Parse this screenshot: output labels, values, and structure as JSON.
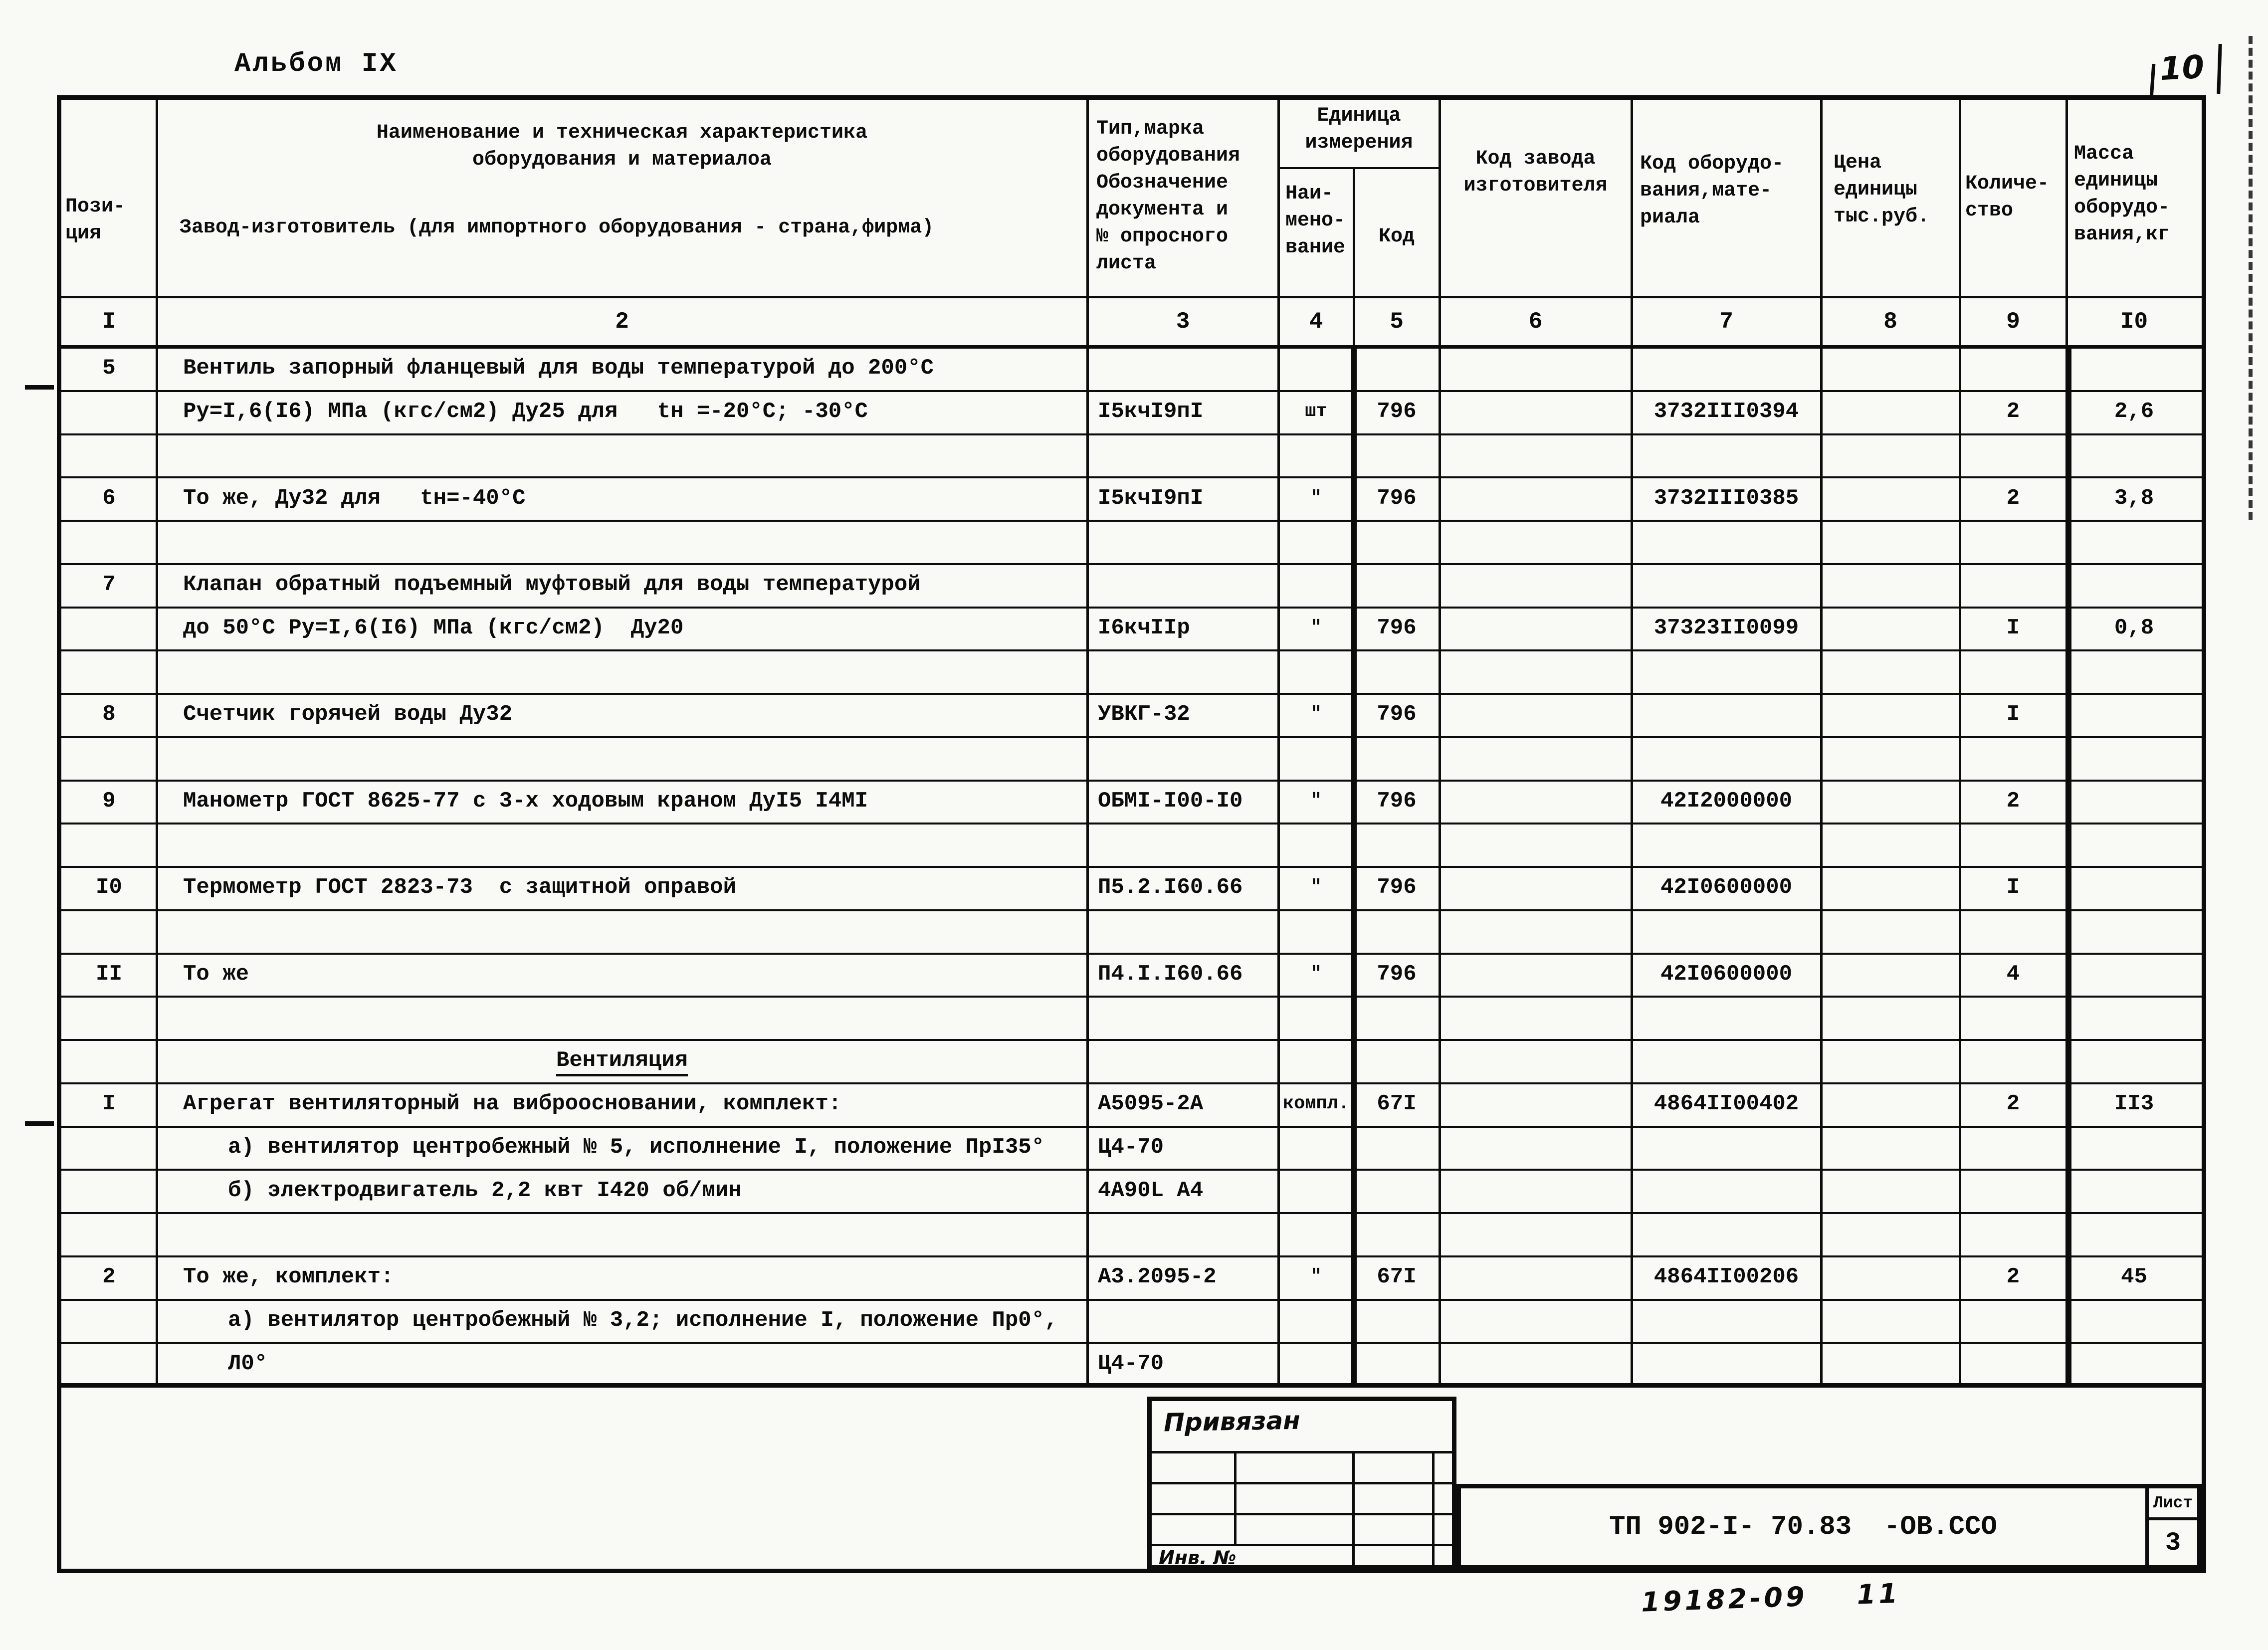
{
  "page": {
    "album_label": "Альбом IX",
    "page_number": "10"
  },
  "table": {
    "header": {
      "position": "Пози-\nция",
      "name_title": "Наименование и техническая характеристика\nоборудования и материалоа",
      "name_subtitle": "Завод-изготовитель (для импортного оборудования - страна,фирма)",
      "type": "Тип,марка\nоборудования\nОбозначение\nдокумента и\n№ опросного\nлиста",
      "unit_group": "Единица\nизмерения",
      "unit_name": "Наи-\nмено-\nвание",
      "unit_code": "Код",
      "factory_code": "Код завода\nизготовителя",
      "equipment_code": "Код оборудо-\nвания,мате-\nриала",
      "price": "Цена\nединицы\nтыс.руб.",
      "quantity": "Количе-\nство",
      "mass": "Масса\nединицы\nоборудо-\nвания,кг"
    },
    "numbering": [
      "I",
      "2",
      "3",
      "4",
      "5",
      "6",
      "7",
      "8",
      "9",
      "I0"
    ],
    "rows": [
      {
        "pos": "5",
        "name": "Вентиль запорный фланцевый для воды температурой до 200°С"
      },
      {
        "name": "Ру=I,6(I6) МПа (кгс/см2) Ду25 для   tн =-20°С; -30°С",
        "type": "I5кчI9пI",
        "unit": "шт",
        "unit_code": "796",
        "equip_code": "3732III0394",
        "qty": "2",
        "mass": "2,6"
      },
      {},
      {
        "pos": "6",
        "name": "То же, Ду32 для   tн=-40°С",
        "type": "I5кчI9пI",
        "unit": "\"",
        "unit_code": "796",
        "equip_code": "3732III0385",
        "qty": "2",
        "mass": "3,8"
      },
      {},
      {
        "pos": "7",
        "name": "Клапан обратный подъемный муфтовый для воды температурой"
      },
      {
        "name": "до 50°С Ру=I,6(I6) МПа (кгс/см2)  Ду20",
        "type": "I6кчIIр",
        "unit": "\"",
        "unit_code": "796",
        "equip_code": "37323II0099",
        "qty": "I",
        "mass": "0,8"
      },
      {},
      {
        "pos": "8",
        "name": "Счетчик горячей воды Ду32",
        "type": "УВКГ-32",
        "unit": "\"",
        "unit_code": "796",
        "qty": "I"
      },
      {},
      {
        "pos": "9",
        "name": "Манометр ГОСТ 8625-77 с 3-х ходовым краном ДуI5 I4МI",
        "type": "ОБМI-I00-I0",
        "unit": "\"",
        "unit_code": "796",
        "equip_code": "42I2000000",
        "qty": "2"
      },
      {},
      {
        "pos": "I0",
        "name": "Термометр ГОСТ 2823-73  с защитной оправой",
        "type": "П5.2.I60.66",
        "unit": "\"",
        "unit_code": "796",
        "equip_code": "42I0600000",
        "qty": "I"
      },
      {},
      {
        "pos": "II",
        "name": "То же",
        "type": "П4.I.I60.66",
        "unit": "\"",
        "unit_code": "796",
        "equip_code": "42I0600000",
        "qty": "4"
      },
      {},
      {
        "name": "Вентиляция",
        "section": true
      },
      {
        "pos": "I",
        "name": "Агрегат вентиляторный на виброосновании, комплект:",
        "type": "А5095-2А",
        "unit": "компл.",
        "unit_code": "67I",
        "equip_code": "4864II00402",
        "qty": "2",
        "mass": "II3"
      },
      {
        "name": "а) вентилятор центробежный № 5, исполнение I, положение ПрI35°",
        "sub": true,
        "type": "Ц4-70"
      },
      {
        "name": "б) электродвигатель 2,2 квт I420 об/мин",
        "sub": true,
        "type": "4А90L А4"
      },
      {},
      {
        "pos": "2",
        "name": "То же, комплект:",
        "type": "А3.2095-2",
        "unit": "\"",
        "unit_code": "67I",
        "equip_code": "4864II00206",
        "qty": "2",
        "mass": "45"
      },
      {
        "name": "а) вентилятор центробежный № 3,2; исполнение I, положение Пр0°,",
        "sub": true
      },
      {
        "name": "Л0°",
        "sub": true,
        "type": "Ц4-70"
      }
    ]
  },
  "stamp": {
    "title": "Привязан",
    "inv_label": "Инв. №"
  },
  "title_block": {
    "doc_number": "ТП 902-I- 70.83  -ОВ.ССО",
    "sheet_label": "Лист",
    "sheet_number": "3",
    "note": "19182-09    11"
  }
}
